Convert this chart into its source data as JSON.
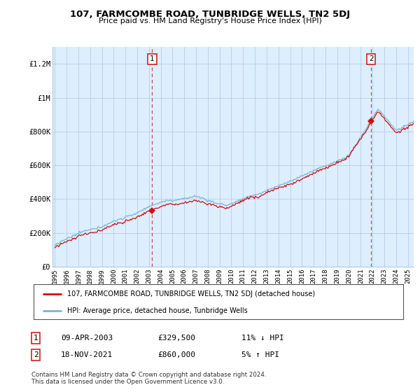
{
  "title": "107, FARMCOMBE ROAD, TUNBRIDGE WELLS, TN2 5DJ",
  "subtitle": "Price paid vs. HM Land Registry's House Price Index (HPI)",
  "ylabel_ticks": [
    "£0",
    "£200K",
    "£400K",
    "£600K",
    "£800K",
    "£1M",
    "£1.2M"
  ],
  "ytick_values": [
    0,
    200000,
    400000,
    600000,
    800000,
    1000000,
    1200000
  ],
  "ylim": [
    0,
    1300000
  ],
  "xlim_start": 1994.8,
  "xlim_end": 2025.5,
  "legend_line1": "107, FARMCOMBE ROAD, TUNBRIDGE WELLS, TN2 5DJ (detached house)",
  "legend_line2": "HPI: Average price, detached house, Tunbridge Wells",
  "annotation1_label": "1",
  "annotation1_date": "09-APR-2003",
  "annotation1_price": "£329,500",
  "annotation1_hpi": "11% ↓ HPI",
  "annotation2_label": "2",
  "annotation2_date": "18-NOV-2021",
  "annotation2_price": "£860,000",
  "annotation2_hpi": "5% ↑ HPI",
  "footer": "Contains HM Land Registry data © Crown copyright and database right 2024.\nThis data is licensed under the Open Government Licence v3.0.",
  "sale1_x": 2003.27,
  "sale1_y": 329500,
  "sale2_x": 2021.88,
  "sale2_y": 860000,
  "hpi_line_color": "#7ab3d4",
  "price_line_color": "#cc1111",
  "vline_color": "#cc2222",
  "chart_bg_color": "#ddeeff",
  "background_color": "#ffffff",
  "grid_color": "#b0c8e0"
}
